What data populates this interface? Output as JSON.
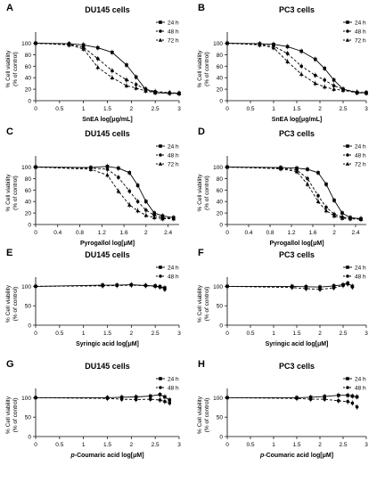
{
  "chart_data": [
    {
      "id": "A",
      "panel_label": "A",
      "type": "line",
      "title": "DU145 cells",
      "xlabel": "SnEA log[μg/mL]",
      "ylabel": [
        "% Cell viability",
        "(% of control)"
      ],
      "xlim": [
        0,
        3
      ],
      "ylim": [
        0,
        110
      ],
      "xticks": [
        0,
        0.5,
        1,
        1.5,
        2,
        2.5,
        3
      ],
      "yticks": [
        0,
        20,
        40,
        60,
        80,
        100
      ],
      "legend_position": "top-right",
      "grid": false,
      "series": [
        {
          "name": "24 h",
          "marker": "square",
          "dash": "solid",
          "x": [
            0,
            0.7,
            1.0,
            1.3,
            1.6,
            1.9,
            2.1,
            2.3,
            2.5,
            2.8,
            3.0
          ],
          "y": [
            100,
            99,
            97,
            92,
            84,
            62,
            41,
            20,
            14,
            13,
            13
          ]
        },
        {
          "name": "48 h",
          "marker": "circle",
          "dash": "dash",
          "x": [
            0,
            0.7,
            1.0,
            1.3,
            1.6,
            1.9,
            2.1,
            2.3,
            2.5,
            2.8,
            3.0
          ],
          "y": [
            100,
            98,
            93,
            73,
            52,
            36,
            28,
            20,
            16,
            14,
            13
          ]
        },
        {
          "name": "72 h",
          "marker": "triangle",
          "dash": "dash",
          "x": [
            0,
            0.7,
            1.0,
            1.3,
            1.6,
            1.9,
            2.1,
            2.3,
            2.5,
            2.8,
            3.0
          ],
          "y": [
            100,
            97,
            90,
            58,
            40,
            26,
            22,
            17,
            14,
            13,
            12
          ]
        }
      ]
    },
    {
      "id": "B",
      "panel_label": "B",
      "type": "line",
      "title": "PC3 cells",
      "xlabel": "SnEA log[μg/mL]",
      "ylabel": [
        "% Cell viability",
        "(% of control)"
      ],
      "xlim": [
        0,
        3
      ],
      "ylim": [
        0,
        110
      ],
      "xticks": [
        0,
        0.5,
        1,
        1.5,
        2,
        2.5,
        3
      ],
      "yticks": [
        0,
        20,
        40,
        60,
        80,
        100
      ],
      "legend_position": "top-right",
      "grid": false,
      "series": [
        {
          "name": "24 h",
          "marker": "square",
          "dash": "solid",
          "x": [
            0,
            0.7,
            1.0,
            1.3,
            1.6,
            1.9,
            2.1,
            2.3,
            2.5,
            2.8,
            3.0
          ],
          "y": [
            100,
            99,
            98,
            94,
            86,
            72,
            56,
            36,
            20,
            14,
            14
          ]
        },
        {
          "name": "48 h",
          "marker": "circle",
          "dash": "dash",
          "x": [
            0,
            0.7,
            1.0,
            1.3,
            1.6,
            1.9,
            2.1,
            2.3,
            2.5,
            2.8,
            3.0
          ],
          "y": [
            100,
            98,
            95,
            82,
            60,
            44,
            36,
            26,
            20,
            15,
            14
          ]
        },
        {
          "name": "72 h",
          "marker": "triangle",
          "dash": "dash",
          "x": [
            0,
            0.7,
            1.0,
            1.3,
            1.6,
            1.9,
            2.1,
            2.3,
            2.5,
            2.8,
            3.0
          ],
          "y": [
            100,
            97,
            92,
            68,
            46,
            30,
            24,
            20,
            18,
            14,
            13
          ]
        }
      ]
    },
    {
      "id": "C",
      "panel_label": "C",
      "type": "line",
      "title": "DU145 cells",
      "xlabel": "Pyrogallol log[μM]",
      "ylabel": [
        "% Cell viability",
        "(% of control)"
      ],
      "xlim": [
        0,
        2.6
      ],
      "ylim": [
        0,
        110
      ],
      "xticks": [
        0,
        0.4,
        0.8,
        1.2,
        1.6,
        2,
        2.4
      ],
      "yticks": [
        0,
        20,
        40,
        60,
        80,
        100
      ],
      "legend_position": "top-right",
      "grid": false,
      "series": [
        {
          "name": "24 h",
          "marker": "square",
          "dash": "solid",
          "x": [
            0,
            1.0,
            1.3,
            1.5,
            1.7,
            1.85,
            2.0,
            2.15,
            2.3,
            2.5
          ],
          "y": [
            100,
            99,
            101,
            98,
            90,
            68,
            40,
            20,
            15,
            12
          ]
        },
        {
          "name": "48 h",
          "marker": "circle",
          "dash": "dash",
          "x": [
            0,
            1.0,
            1.3,
            1.5,
            1.7,
            1.85,
            2.0,
            2.15,
            2.3,
            2.5
          ],
          "y": [
            100,
            98,
            96,
            82,
            58,
            40,
            25,
            16,
            12,
            11
          ]
        },
        {
          "name": "72 h",
          "marker": "triangle",
          "dash": "dash",
          "x": [
            0,
            1.0,
            1.3,
            1.5,
            1.7,
            1.85,
            2.0,
            2.15,
            2.3,
            2.5
          ],
          "y": [
            100,
            96,
            86,
            58,
            34,
            24,
            16,
            12,
            10,
            10
          ]
        }
      ]
    },
    {
      "id": "D",
      "panel_label": "D",
      "type": "line",
      "title": "PC3 cells",
      "xlabel": "Pyrogallol log[μM]",
      "ylabel": [
        "% Cell viability",
        "(% of control)"
      ],
      "xlim": [
        0,
        2.6
      ],
      "ylim": [
        0,
        110
      ],
      "xticks": [
        0,
        0.4,
        0.8,
        1.2,
        1.6,
        2,
        2.4
      ],
      "yticks": [
        0,
        20,
        40,
        60,
        80,
        100
      ],
      "legend_position": "top-right",
      "grid": false,
      "series": [
        {
          "name": "24 h",
          "marker": "square",
          "dash": "solid",
          "x": [
            0,
            1.0,
            1.3,
            1.5,
            1.7,
            1.85,
            2.0,
            2.15,
            2.3,
            2.5
          ],
          "y": [
            100,
            99,
            98,
            96,
            90,
            70,
            42,
            20,
            12,
            10
          ]
        },
        {
          "name": "48 h",
          "marker": "circle",
          "dash": "dash",
          "x": [
            0,
            1.0,
            1.3,
            1.5,
            1.7,
            1.85,
            2.0,
            2.15,
            2.3,
            2.5
          ],
          "y": [
            100,
            98,
            95,
            80,
            50,
            30,
            18,
            13,
            11,
            10
          ]
        },
        {
          "name": "72 h",
          "marker": "triangle",
          "dash": "dash",
          "x": [
            0,
            1.0,
            1.3,
            1.5,
            1.7,
            1.85,
            2.0,
            2.15,
            2.3,
            2.5
          ],
          "y": [
            100,
            97,
            92,
            70,
            40,
            24,
            15,
            11,
            10,
            9
          ]
        }
      ]
    },
    {
      "id": "E",
      "panel_label": "E",
      "type": "line",
      "title": "DU145 cells",
      "xlabel": "Syringic acid log[μM]",
      "ylabel": [
        "% Cell viability",
        "(% of control)"
      ],
      "xlim": [
        0,
        3
      ],
      "ylim": [
        0,
        110
      ],
      "xticks": [
        0,
        0.5,
        1,
        1.5,
        2,
        2.5,
        3
      ],
      "yticks": [
        0,
        50,
        100
      ],
      "legend_position": "top-right",
      "grid": false,
      "series": [
        {
          "name": "24 h",
          "marker": "square",
          "dash": "solid",
          "x": [
            0,
            1.4,
            1.7,
            2.0,
            2.3,
            2.5,
            2.6,
            2.7
          ],
          "y": [
            100,
            103,
            103,
            104,
            102,
            101,
            99,
            96
          ]
        },
        {
          "name": "48 h",
          "marker": "circle",
          "dash": "dash",
          "x": [
            0,
            1.4,
            1.7,
            2.0,
            2.3,
            2.5,
            2.6,
            2.7
          ],
          "y": [
            100,
            101,
            102,
            103,
            102,
            100,
            98,
            92
          ]
        }
      ]
    },
    {
      "id": "F",
      "panel_label": "F",
      "type": "line",
      "title": "PC3 cells",
      "xlabel": "Syringic acid log[μM]",
      "ylabel": [
        "% Cell viability",
        "(% of control)"
      ],
      "xlim": [
        0,
        3
      ],
      "ylim": [
        0,
        110
      ],
      "xticks": [
        0,
        0.5,
        1,
        1.5,
        2,
        2.5,
        3
      ],
      "yticks": [
        0,
        50,
        100
      ],
      "legend_position": "top-right",
      "grid": false,
      "series": [
        {
          "name": "24 h",
          "marker": "square",
          "dash": "solid",
          "x": [
            0,
            1.4,
            1.7,
            2.0,
            2.3,
            2.5,
            2.6,
            2.7
          ],
          "y": [
            100,
            100,
            99,
            98,
            101,
            104,
            108,
            100
          ]
        },
        {
          "name": "48 h",
          "marker": "circle",
          "dash": "dash",
          "x": [
            0,
            1.4,
            1.7,
            2.0,
            2.3,
            2.5,
            2.6,
            2.7
          ],
          "y": [
            100,
            97,
            94,
            92,
            96,
            102,
            106,
            98
          ]
        }
      ]
    },
    {
      "id": "G",
      "panel_label": "G",
      "type": "line",
      "title": "DU145 cells",
      "xlabel": [
        "p",
        "-Coumaric acid log[μM]"
      ],
      "ylabel": [
        "% Cell viability",
        "(% of control)"
      ],
      "xlim": [
        0,
        3
      ],
      "ylim": [
        0,
        110
      ],
      "xticks": [
        0,
        0.5,
        1,
        1.5,
        2,
        2.5,
        3
      ],
      "yticks": [
        0,
        50,
        100
      ],
      "legend_position": "top-right",
      "grid": false,
      "series": [
        {
          "name": "24 h",
          "marker": "square",
          "dash": "solid",
          "x": [
            0,
            1.5,
            1.8,
            2.1,
            2.4,
            2.6,
            2.7,
            2.8
          ],
          "y": [
            100,
            100,
            101,
            102,
            104,
            108,
            102,
            94
          ]
        },
        {
          "name": "48 h",
          "marker": "circle",
          "dash": "dash",
          "x": [
            0,
            1.5,
            1.8,
            2.1,
            2.4,
            2.6,
            2.7,
            2.8
          ],
          "y": [
            100,
            98,
            96,
            95,
            96,
            94,
            90,
            86
          ]
        }
      ]
    },
    {
      "id": "H",
      "panel_label": "H",
      "type": "line",
      "title": "PC3 cells",
      "xlabel": [
        "p",
        "-Coumaric acid log[μM]"
      ],
      "ylabel": [
        "% Cell viability",
        "(% of control)"
      ],
      "xlim": [
        0,
        3
      ],
      "ylim": [
        0,
        110
      ],
      "xticks": [
        0,
        0.5,
        1,
        1.5,
        2,
        2.5,
        3
      ],
      "yticks": [
        0,
        50,
        100
      ],
      "legend_position": "top-right",
      "grid": false,
      "series": [
        {
          "name": "24 h",
          "marker": "square",
          "dash": "solid",
          "x": [
            0,
            1.5,
            1.8,
            2.1,
            2.4,
            2.6,
            2.7,
            2.8
          ],
          "y": [
            100,
            100,
            101,
            103,
            106,
            106,
            104,
            102
          ]
        },
        {
          "name": "48 h",
          "marker": "circle",
          "dash": "dash",
          "x": [
            0,
            1.5,
            1.8,
            2.1,
            2.4,
            2.6,
            2.7,
            2.8
          ],
          "y": [
            100,
            98,
            96,
            96,
            92,
            90,
            86,
            76
          ]
        }
      ]
    }
  ],
  "colors": {
    "line": "#000000",
    "axis": "#000000",
    "background": "#ffffff"
  }
}
